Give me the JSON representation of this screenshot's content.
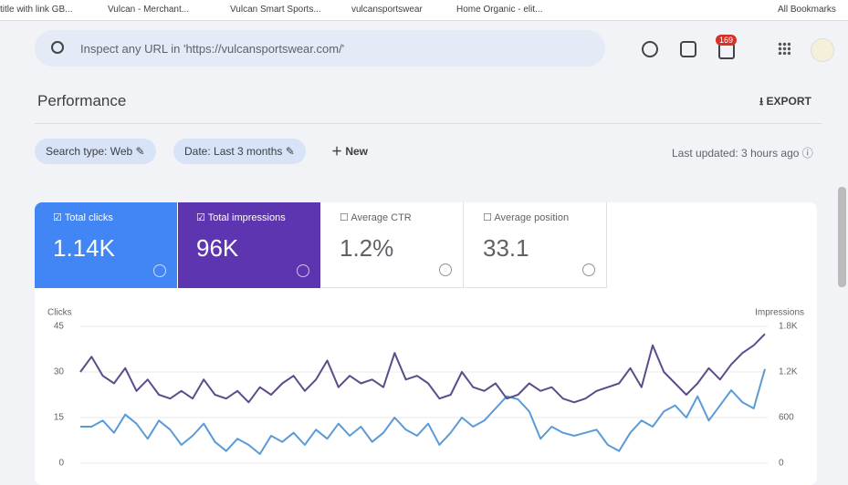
{
  "bookmarks": [
    "title with link GB...",
    "Vulcan - Merchant...",
    "Vulcan Smart Sports...",
    "vulcansportswear",
    "Home Organic - elit...",
    "All Bookmarks"
  ],
  "search": {
    "placeholder": "Inspect any URL in 'https://vulcansportswear.com/'",
    "notifications": "169"
  },
  "header": {
    "title": "Performance",
    "export": "EXPORT"
  },
  "filters": {
    "search_type": "Search type: Web",
    "date": "Date: Last 3 months",
    "new": "New",
    "updated": "Last updated: 3 hours ago"
  },
  "metrics": [
    {
      "label": "Total clicks",
      "value": "1.14K"
    },
    {
      "label": "Total impressions",
      "value": "96K"
    },
    {
      "label": "Average CTR",
      "value": "1.2%"
    },
    {
      "label": "Average position",
      "value": "33.1"
    }
  ],
  "chart_data": {
    "type": "line",
    "y_label": "Clicks",
    "y2_label": "Impressions",
    "ylim": [
      0,
      45
    ],
    "yticks": [
      0,
      15,
      30,
      45
    ],
    "y2lim": [
      0,
      1800
    ],
    "y2ticks": [
      0,
      600,
      {
        "value": 1200,
        "label": "1.2K"
      },
      {
        "value": 1800,
        "label": "1.8K"
      }
    ],
    "series": [
      {
        "name": "Clicks",
        "color": "#5b9bd5",
        "values": [
          12,
          12,
          14,
          10,
          16,
          13,
          8,
          14,
          11,
          6,
          9,
          13,
          7,
          4,
          8,
          6,
          3,
          9,
          7,
          10,
          6,
          11,
          8,
          13,
          9,
          12,
          7,
          10,
          15,
          11,
          9,
          13,
          6,
          10,
          15,
          12,
          14,
          18,
          22,
          21,
          17,
          8,
          12,
          10,
          9,
          10,
          11,
          6,
          4,
          10,
          14,
          12,
          17,
          19,
          15,
          22,
          14,
          19,
          24,
          20,
          18,
          31
        ]
      },
      {
        "name": "Impressions",
        "color": "#5e4b8b",
        "axis": "y2",
        "values": [
          1200,
          1400,
          1150,
          1050,
          1250,
          950,
          1100,
          900,
          850,
          950,
          850,
          1100,
          900,
          850,
          950,
          800,
          1000,
          900,
          1050,
          1150,
          950,
          1100,
          1350,
          1000,
          1150,
          1050,
          1100,
          1000,
          1450,
          1100,
          1150,
          1050,
          850,
          900,
          1200,
          1000,
          950,
          1050,
          850,
          900,
          1050,
          950,
          1000,
          850,
          800,
          850,
          950,
          1000,
          1050,
          1250,
          1000,
          1550,
          1200,
          1050,
          900,
          1050,
          1250,
          1100,
          1300,
          1450,
          1550,
          1700
        ]
      }
    ]
  }
}
